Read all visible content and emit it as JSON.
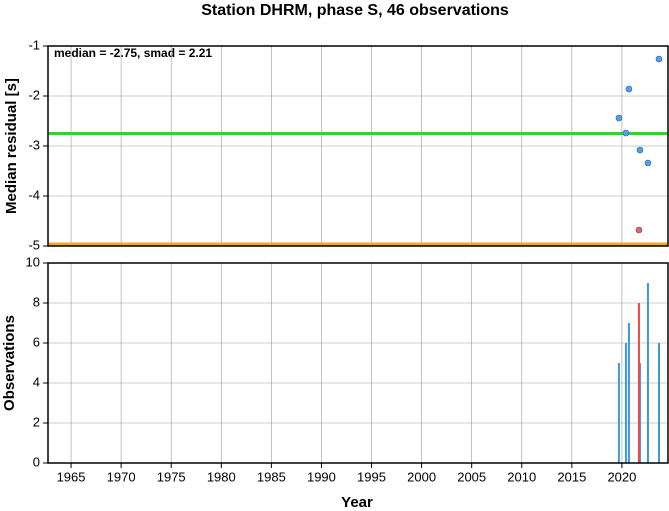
{
  "chart_data": [
    {
      "type": "scatter",
      "title": "Station DHRM, phase S, 46 observations",
      "y_label": "Median residual [s]",
      "annotation": "median = -2.75, smad = 2.21",
      "xlim": [
        1962.7,
        2024.6
      ],
      "xticks": [
        1965,
        1970,
        1975,
        1980,
        1985,
        1990,
        1995,
        2000,
        2005,
        2010,
        2015,
        2020
      ],
      "ylim": [
        -5,
        -1
      ],
      "yticks": [
        -5,
        -4,
        -3,
        -2,
        -1
      ],
      "grid": true,
      "hlines": [
        {
          "value": -2.75,
          "color": "#22dd22"
        },
        {
          "value": -4.96,
          "color": "#f5a623"
        }
      ],
      "series": [
        {
          "color": "#5b9bf0",
          "x": [
            2019.7,
            2020.7,
            2020.4,
            2021.8,
            2022.6,
            2023.7
          ],
          "values": [
            -2.44,
            -1.86,
            -2.74,
            -3.08,
            -3.34,
            -1.26
          ]
        },
        {
          "color": "#f06060",
          "x": [
            2021.7
          ],
          "values": [
            -4.68
          ]
        }
      ]
    },
    {
      "type": "bar",
      "y_label": "Observations",
      "x_label": "Year",
      "xlim": [
        1962.7,
        2024.6
      ],
      "xticks": [
        1965,
        1970,
        1975,
        1980,
        1985,
        1990,
        1995,
        2000,
        2005,
        2010,
        2015,
        2020
      ],
      "ylim": [
        0,
        10
      ],
      "yticks": [
        0,
        2,
        4,
        6,
        8,
        10
      ],
      "grid": true,
      "series": [
        {
          "color": "#3a9ad9",
          "x": [
            2019.7,
            2020.4,
            2020.7,
            2021.8,
            2022.6,
            2023.7
          ],
          "values": [
            5,
            6,
            7,
            5,
            9,
            6
          ]
        },
        {
          "color": "#f04848",
          "x": [
            2021.7
          ],
          "values": [
            8
          ]
        }
      ]
    }
  ]
}
